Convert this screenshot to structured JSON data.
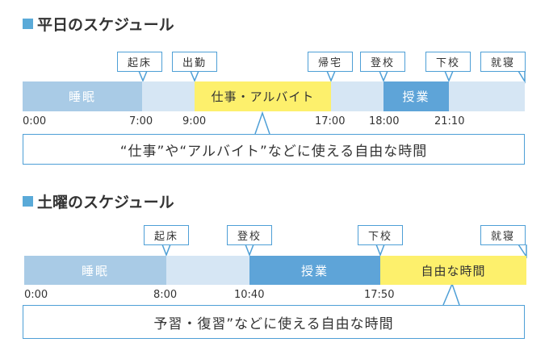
{
  "weekday": {
    "title": "平日のスケジュール",
    "segments": {
      "sleep": "睡眠",
      "work": "仕事・アルバイト",
      "class": "授業"
    },
    "callouts": {
      "wake": "起床",
      "leave": "出勤",
      "home": "帰宅",
      "school": "登校",
      "out": "下校",
      "bed": "就寝"
    },
    "times": {
      "t0": "0:00",
      "t1": "7:00",
      "t2": "9:00",
      "t3": "17:00",
      "t4": "18:00",
      "t5": "21:10"
    },
    "note": "“仕事”や“アルバイト”などに使える自由な時間"
  },
  "saturday": {
    "title": "土曜のスケジュール",
    "segments": {
      "sleep": "睡眠",
      "class": "授業",
      "free": "自由な時間"
    },
    "callouts": {
      "wake": "起床",
      "school": "登校",
      "out": "下校",
      "bed": "就寝"
    },
    "times": {
      "t0": "0:00",
      "t1": "8:00",
      "t2": "10:40",
      "t3": "17:50"
    },
    "note": "予習・復習”などに使える自由な時間"
  },
  "colors": {
    "sleep": "#a9cbe6",
    "light": "#d6e6f4",
    "work": "#fdf06c",
    "class": "#5ea4d8",
    "border": "#4e9fd6",
    "square": "#5aaad8"
  }
}
